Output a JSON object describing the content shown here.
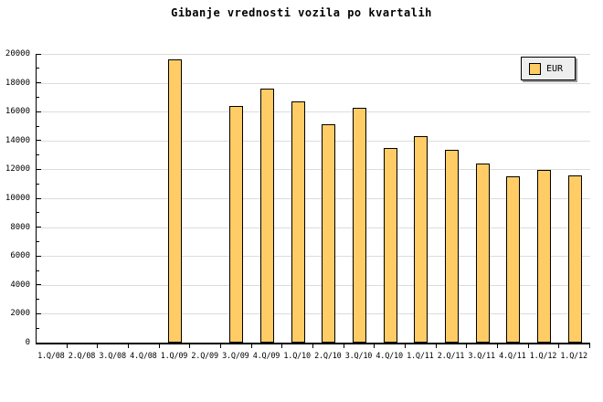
{
  "title": "Gibanje vrednosti vozila po kvartalih",
  "legend": {
    "label": "EUR"
  },
  "colors": {
    "bar_fill": "#FFCC66",
    "bar_border": "#000000",
    "gridline": "#DCDCDC",
    "axis": "#000000",
    "legend_bg": "#EEEEEE",
    "legend_shadow": "#999999",
    "background": "#FFFFFF",
    "text": "#000000"
  },
  "chart_data": {
    "type": "bar",
    "title": "Gibanje vrednosti vozila po kvartalih",
    "categories": [
      "1.Q/08",
      "2.Q/08",
      "3.Q/08",
      "4.Q/08",
      "1.Q/09",
      "2.Q/09",
      "3.Q/09",
      "4.Q/09",
      "1.Q/10",
      "2.Q/10",
      "3.Q/10",
      "4.Q/10",
      "1.Q/11",
      "2.Q/11",
      "3.Q/11",
      "4.Q/11",
      "1.Q/12",
      "1.Q/12"
    ],
    "series": [
      {
        "name": "EUR",
        "values": [
          null,
          null,
          null,
          null,
          19600,
          null,
          16400,
          17600,
          16700,
          15100,
          16250,
          13500,
          14300,
          13350,
          12400,
          11500,
          11950,
          11600
        ]
      }
    ],
    "xlabel": "",
    "ylabel": "",
    "ylim": [
      0,
      20000
    ],
    "yticks": [
      0,
      2000,
      4000,
      6000,
      8000,
      10000,
      12000,
      14000,
      16000,
      18000,
      20000
    ],
    "ytick_step": 2000,
    "yminor_step": 1000,
    "grid": true,
    "legend_position": "top-right"
  }
}
